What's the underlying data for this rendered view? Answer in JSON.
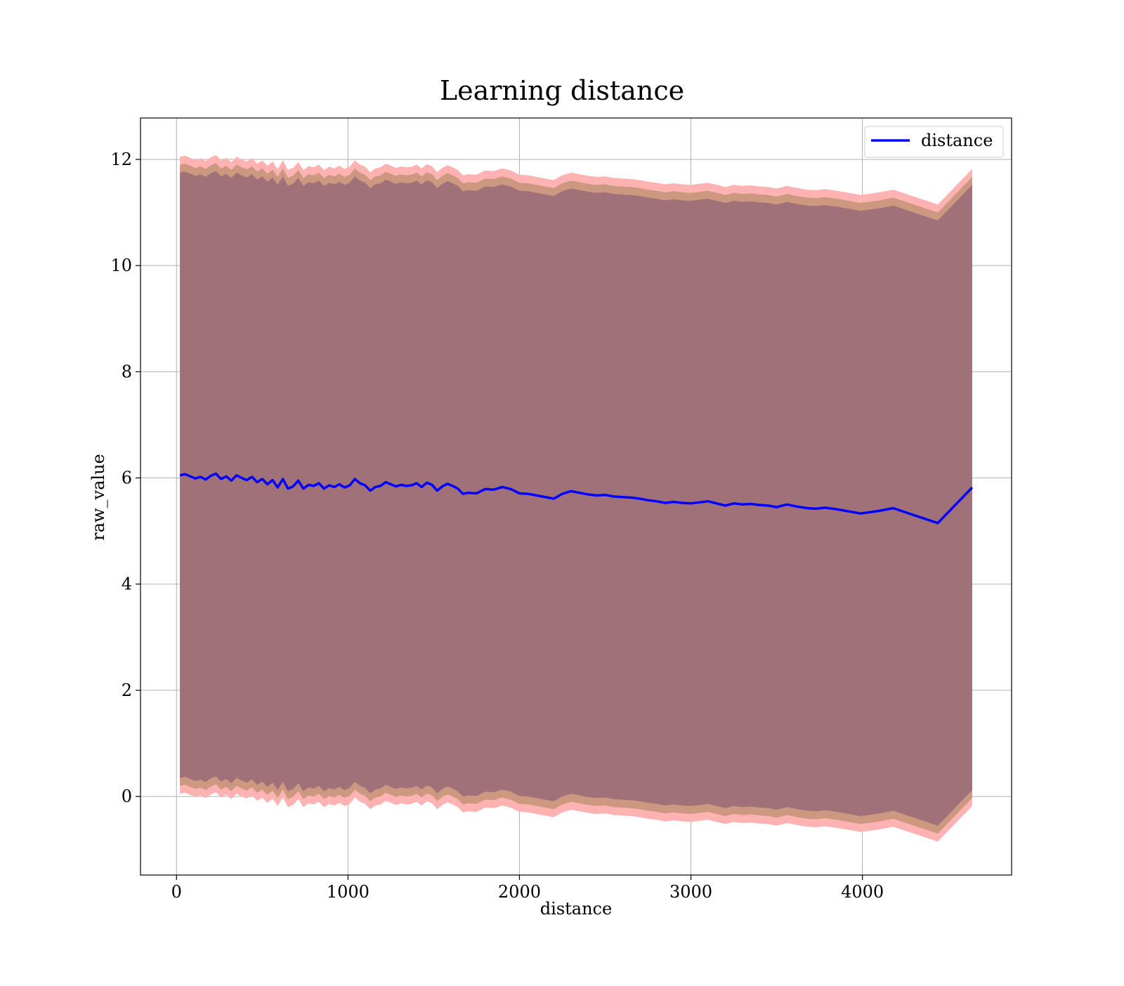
{
  "chart_data": {
    "type": "line",
    "title": "Learning distance",
    "xlabel": "distance",
    "ylabel": "raw_value",
    "xlim": [
      -210,
      4870
    ],
    "ylim": [
      -1.48,
      12.78
    ],
    "xticks": [
      0,
      1000,
      2000,
      3000,
      4000
    ],
    "xtick_labels": [
      "0",
      "1000",
      "2000",
      "3000",
      "4000"
    ],
    "yticks": [
      0,
      2,
      4,
      6,
      8,
      10,
      12
    ],
    "ytick_labels": [
      "0",
      "2",
      "4",
      "6",
      "8",
      "10",
      "12"
    ],
    "grid": true,
    "legend": {
      "placement": "top-right",
      "entries": [
        "distance"
      ]
    },
    "colors": {
      "line": "#0000ff",
      "outer_band": "#ffb2b2",
      "middle_band": "#cc9980",
      "inner_band": "#a1717a"
    },
    "series": [
      {
        "name": "distance",
        "x": [
          20,
          50,
          80,
          110,
          140,
          170,
          200,
          230,
          260,
          290,
          320,
          350,
          380,
          410,
          440,
          470,
          500,
          530,
          560,
          590,
          620,
          650,
          680,
          710,
          740,
          770,
          800,
          830,
          860,
          890,
          920,
          950,
          980,
          1010,
          1040,
          1070,
          1100,
          1130,
          1160,
          1190,
          1220,
          1250,
          1280,
          1310,
          1340,
          1370,
          1400,
          1430,
          1460,
          1490,
          1520,
          1550,
          1580,
          1610,
          1640,
          1670,
          1700,
          1750,
          1800,
          1850,
          1900,
          1950,
          2000,
          2050,
          2100,
          2150,
          2200,
          2250,
          2300,
          2350,
          2400,
          2450,
          2500,
          2550,
          2600,
          2650,
          2700,
          2750,
          2800,
          2850,
          2900,
          2950,
          3000,
          3050,
          3100,
          3150,
          3200,
          3250,
          3300,
          3350,
          3400,
          3450,
          3500,
          3560,
          3620,
          3680,
          3730,
          3780,
          3850,
          3920,
          3990,
          4100,
          4180,
          4300,
          4440,
          4640
        ],
        "values": [
          6.05,
          6.07,
          6.03,
          5.99,
          6.02,
          5.97,
          6.04,
          6.08,
          5.98,
          6.03,
          5.95,
          6.05,
          6.0,
          5.96,
          6.02,
          5.92,
          5.98,
          5.88,
          5.96,
          5.82,
          5.98,
          5.8,
          5.84,
          5.95,
          5.8,
          5.87,
          5.85,
          5.9,
          5.8,
          5.86,
          5.83,
          5.88,
          5.82,
          5.86,
          5.98,
          5.9,
          5.86,
          5.76,
          5.83,
          5.85,
          5.92,
          5.88,
          5.84,
          5.87,
          5.85,
          5.86,
          5.9,
          5.83,
          5.91,
          5.87,
          5.76,
          5.84,
          5.89,
          5.85,
          5.8,
          5.7,
          5.72,
          5.71,
          5.79,
          5.78,
          5.83,
          5.79,
          5.71,
          5.7,
          5.67,
          5.64,
          5.61,
          5.7,
          5.75,
          5.72,
          5.69,
          5.67,
          5.68,
          5.65,
          5.64,
          5.63,
          5.61,
          5.58,
          5.56,
          5.53,
          5.55,
          5.53,
          5.52,
          5.54,
          5.56,
          5.52,
          5.48,
          5.52,
          5.5,
          5.51,
          5.49,
          5.48,
          5.45,
          5.5,
          5.46,
          5.43,
          5.42,
          5.44,
          5.41,
          5.37,
          5.33,
          5.38,
          5.43,
          5.3,
          5.15,
          5.82
        ]
      }
    ],
    "bands": [
      {
        "name": "outer",
        "offset": 6.0
      },
      {
        "name": "middle",
        "offset": 5.85
      },
      {
        "name": "inner",
        "offset": 5.7
      }
    ]
  }
}
